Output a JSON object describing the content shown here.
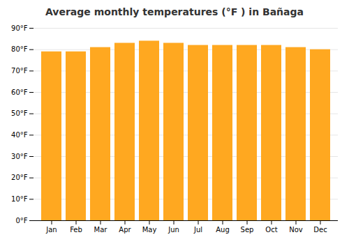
{
  "chart_data": {
    "type": "bar",
    "title": "Average monthly temperatures (°F ) in Bañaga",
    "categories": [
      "Jan",
      "Feb",
      "Mar",
      "Apr",
      "May",
      "Jun",
      "Jul",
      "Aug",
      "Sep",
      "Oct",
      "Nov",
      "Dec"
    ],
    "values": [
      79,
      79,
      81,
      83,
      84,
      83,
      82,
      82,
      82,
      82,
      81,
      80
    ],
    "color": "#FFA820",
    "ylim": [
      0,
      90
    ],
    "yticks": [
      {
        "value": 0,
        "label": "0°F"
      },
      {
        "value": 10,
        "label": "10°F"
      },
      {
        "value": 20,
        "label": "20°F"
      },
      {
        "value": 30,
        "label": "30°F"
      },
      {
        "value": 40,
        "label": "40°F"
      },
      {
        "value": 50,
        "label": "50°F"
      },
      {
        "value": 60,
        "label": "60°F"
      },
      {
        "value": 70,
        "label": "70°F"
      },
      {
        "value": 80,
        "label": "80°F"
      },
      {
        "value": 90,
        "label": "90°F"
      }
    ],
    "grid": true
  }
}
